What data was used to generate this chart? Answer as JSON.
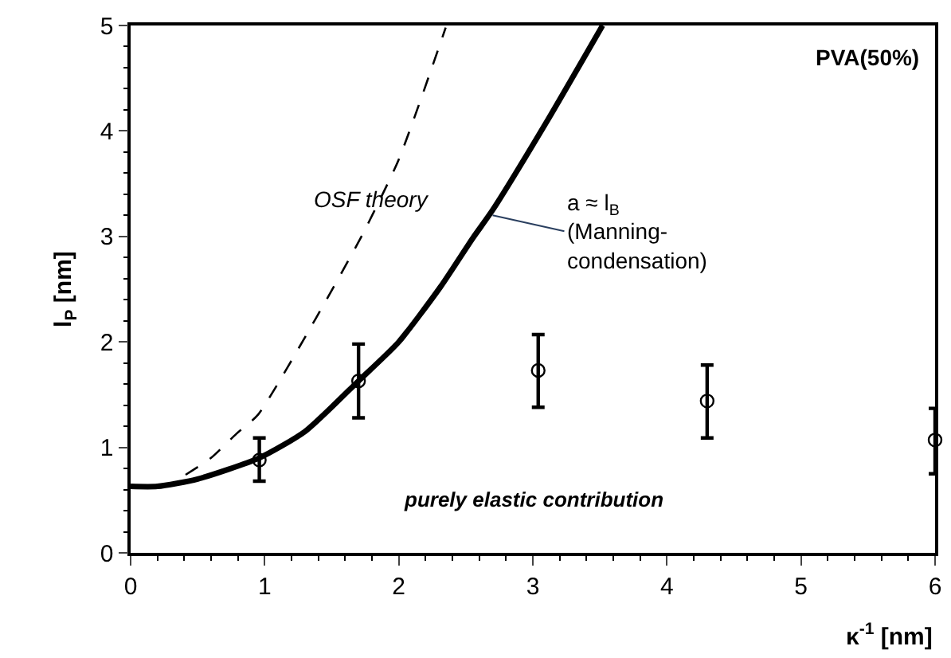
{
  "chart_data": {
    "type": "scatter",
    "title": "PVA(50%)",
    "xlabel": "κ$^{-1}$ [nm]",
    "ylabel": "l$_{P}$ [nm]",
    "xlim": [
      0,
      6
    ],
    "ylim": [
      0,
      5
    ],
    "xticks": [
      0,
      1,
      2,
      3,
      4,
      5,
      6
    ],
    "yticks": [
      0,
      1,
      2,
      3,
      4,
      5
    ],
    "annotations": [
      "OSF theory",
      {
        "text": "a ≈ l$_{B}$\n(Manning-\ncondensation)",
        "x": 2.7,
        "y": 3.2
      },
      "purely elastic contribution"
    ],
    "series": [
      {
        "type": "scatter",
        "color": "#000000",
        "marker": "circle",
        "x": [
          0.96,
          1.7,
          3.04,
          4.3,
          6.0
        ],
        "values": [
          0.88,
          1.63,
          1.73,
          1.44,
          1.07
        ],
        "errors": [
          [
            0.68,
            1.09
          ],
          [
            1.28,
            1.98
          ],
          [
            1.38,
            2.07
          ],
          [
            1.09,
            1.78
          ],
          [
            0.75,
            1.37
          ]
        ]
      },
      {
        "type": "line",
        "color": "#000000",
        "line_style": "solid",
        "marker": "none",
        "x": [
          0,
          0.2,
          0.5,
          0.96,
          1.3,
          1.7,
          2.0,
          2.31,
          2.55,
          2.7,
          3.1,
          3.52
        ],
        "values": [
          0.63,
          0.63,
          0.7,
          0.9,
          1.15,
          1.63,
          2.0,
          2.52,
          2.98,
          3.25,
          4.08,
          5.0
        ]
      },
      {
        "type": "line",
        "color": "#000000",
        "line_style": "dashed",
        "marker": "none",
        "x": [
          0.41,
          0.6,
          0.79,
          0.95,
          1.38,
          1.73,
          2.0,
          2.35
        ],
        "values": [
          0.74,
          0.9,
          1.13,
          1.31,
          2.22,
          3.02,
          3.73,
          4.98
        ]
      }
    ]
  }
}
